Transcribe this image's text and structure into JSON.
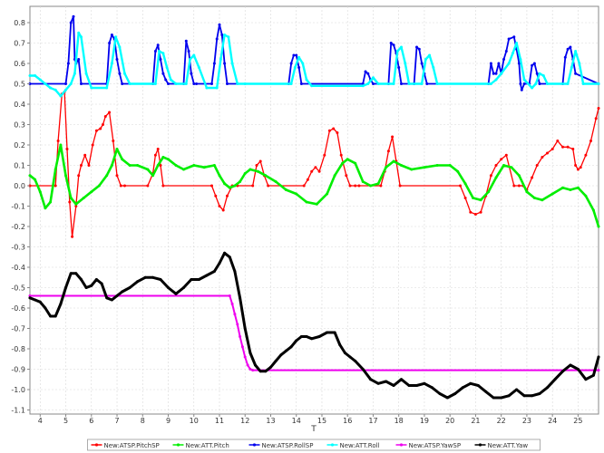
{
  "chart_data": {
    "type": "line",
    "xlabel": "T",
    "ylabel": "",
    "xlim": [
      3.6,
      25.8
    ],
    "ylim": [
      -1.12,
      0.88
    ],
    "x_ticks": [
      4,
      5,
      6,
      7,
      8,
      9,
      10,
      11,
      12,
      13,
      14,
      15,
      16,
      17,
      18,
      19,
      20,
      21,
      22,
      23,
      24,
      25
    ],
    "y_ticks": [
      0.8,
      0.7,
      0.6,
      0.5,
      0.4,
      0.3,
      0.2,
      0.1,
      0.0,
      -0.1,
      -0.2,
      -0.3,
      -0.4,
      -0.5,
      -0.6,
      -0.7,
      -0.8,
      -0.9,
      -1.0,
      -1.1
    ],
    "y_tick_labels": [
      "0.8",
      "0.7",
      "0.6",
      "0.5",
      "0.4",
      "0.3",
      "0.2",
      "0.1",
      "0.0",
      "-0.1",
      "-0.2",
      "-0.3",
      "-0.4",
      "-0.5",
      "-0.6",
      "-0.7",
      "-0.8",
      "-0.9",
      "-1.0",
      "-1.1"
    ],
    "grid": true,
    "legend_position": "bottom",
    "series": [
      {
        "name": "New:ATSP.PitchSP",
        "color": "#ff0000",
        "x": [
          3.6,
          4.6,
          4.7,
          4.85,
          4.95,
          5.05,
          5.15,
          5.25,
          5.4,
          5.5,
          5.6,
          5.75,
          5.9,
          6.05,
          6.2,
          6.35,
          6.45,
          6.55,
          6.7,
          6.85,
          7.0,
          7.15,
          7.3,
          8.2,
          8.4,
          8.5,
          8.6,
          8.7,
          8.8,
          10.7,
          10.85,
          11.0,
          11.15,
          11.3,
          11.5,
          11.7,
          12.3,
          12.45,
          12.6,
          12.75,
          12.9,
          14.3,
          14.45,
          14.6,
          14.75,
          14.9,
          15.1,
          15.3,
          15.45,
          15.6,
          15.75,
          15.95,
          16.1,
          16.3,
          16.45,
          17.3,
          17.45,
          17.6,
          17.75,
          17.9,
          18.05,
          20.4,
          20.6,
          20.8,
          21.0,
          21.2,
          21.4,
          21.6,
          21.8,
          22.0,
          22.2,
          22.5,
          22.7,
          22.85,
          23.0,
          23.2,
          23.4,
          23.6,
          23.8,
          24.0,
          24.2,
          24.4,
          24.6,
          24.8,
          24.9,
          25.0,
          25.1,
          25.3,
          25.5,
          25.7,
          25.8
        ],
        "values": [
          0.0,
          0.0,
          0.22,
          0.45,
          0.46,
          0.18,
          -0.08,
          -0.25,
          -0.1,
          0.05,
          0.1,
          0.15,
          0.1,
          0.2,
          0.27,
          0.28,
          0.3,
          0.34,
          0.36,
          0.22,
          0.05,
          0.0,
          0.0,
          0.0,
          0.06,
          0.15,
          0.18,
          0.1,
          0.0,
          0.0,
          -0.05,
          -0.1,
          -0.12,
          -0.05,
          0.0,
          0.0,
          0.0,
          0.1,
          0.12,
          0.05,
          0.0,
          0.0,
          0.03,
          0.07,
          0.09,
          0.07,
          0.15,
          0.27,
          0.28,
          0.26,
          0.15,
          0.05,
          0.0,
          0.0,
          0.0,
          0.0,
          0.07,
          0.17,
          0.24,
          0.12,
          0.0,
          0.0,
          -0.06,
          -0.13,
          -0.14,
          -0.13,
          -0.05,
          0.05,
          0.1,
          0.13,
          0.15,
          0.0,
          0.0,
          0.0,
          -0.02,
          0.04,
          0.1,
          0.14,
          0.16,
          0.18,
          0.22,
          0.19,
          0.19,
          0.18,
          0.1,
          0.08,
          0.09,
          0.15,
          0.22,
          0.33,
          0.38
        ]
      },
      {
        "name": "New:ATT.Pitch",
        "color": "#00ee00",
        "x": [
          3.6,
          3.8,
          4.0,
          4.2,
          4.4,
          4.6,
          4.8,
          5.0,
          5.2,
          5.4,
          5.7,
          6.0,
          6.3,
          6.6,
          6.8,
          7.0,
          7.2,
          7.5,
          7.8,
          8.2,
          8.4,
          8.6,
          8.8,
          9.0,
          9.3,
          9.6,
          10.0,
          10.4,
          10.8,
          11.0,
          11.2,
          11.4,
          11.6,
          11.8,
          12.0,
          12.2,
          12.5,
          12.8,
          13.2,
          13.6,
          14.0,
          14.4,
          14.8,
          15.2,
          15.5,
          15.8,
          16.0,
          16.3,
          16.6,
          16.9,
          17.2,
          17.5,
          17.8,
          18.1,
          18.5,
          19.0,
          19.5,
          20.0,
          20.3,
          20.6,
          20.9,
          21.2,
          21.5,
          21.8,
          22.1,
          22.4,
          22.7,
          23.0,
          23.3,
          23.6,
          24.0,
          24.4,
          24.7,
          25.0,
          25.3,
          25.6,
          25.8
        ],
        "values": [
          0.05,
          0.03,
          -0.03,
          -0.11,
          -0.08,
          0.08,
          0.2,
          0.05,
          -0.06,
          -0.09,
          -0.06,
          -0.03,
          0.0,
          0.05,
          0.1,
          0.18,
          0.13,
          0.1,
          0.1,
          0.08,
          0.05,
          0.1,
          0.14,
          0.13,
          0.1,
          0.08,
          0.1,
          0.09,
          0.1,
          0.05,
          0.01,
          -0.01,
          0.0,
          0.02,
          0.06,
          0.08,
          0.07,
          0.05,
          0.02,
          -0.02,
          -0.04,
          -0.08,
          -0.09,
          -0.04,
          0.05,
          0.11,
          0.13,
          0.11,
          0.02,
          0.0,
          0.01,
          0.09,
          0.12,
          0.1,
          0.08,
          0.09,
          0.1,
          0.1,
          0.07,
          0.01,
          -0.06,
          -0.07,
          -0.03,
          0.04,
          0.1,
          0.09,
          0.05,
          -0.03,
          -0.06,
          -0.07,
          -0.04,
          -0.01,
          -0.02,
          -0.01,
          -0.05,
          -0.12,
          -0.2
        ]
      },
      {
        "name": "New:ATSP.RollSP",
        "color": "#0000ee",
        "x": [
          3.6,
          5.0,
          5.1,
          5.2,
          5.3,
          5.35,
          5.4,
          5.5,
          5.6,
          6.6,
          6.7,
          6.8,
          6.9,
          7.0,
          7.1,
          7.2,
          8.4,
          8.5,
          8.6,
          8.7,
          8.8,
          8.9,
          9.0,
          9.6,
          9.7,
          9.8,
          9.9,
          10.0,
          10.1,
          10.7,
          10.8,
          10.9,
          11.0,
          11.1,
          11.2,
          11.3,
          13.7,
          13.8,
          13.9,
          14.0,
          14.1,
          14.2,
          16.6,
          16.7,
          16.8,
          16.9,
          17.0,
          17.6,
          17.7,
          17.8,
          17.9,
          18.0,
          18.1,
          18.6,
          18.7,
          18.8,
          18.9,
          19.0,
          19.1,
          21.5,
          21.6,
          21.7,
          21.8,
          21.9,
          22.0,
          22.1,
          22.2,
          22.3,
          22.5,
          22.6,
          22.7,
          22.75,
          22.8,
          22.9,
          23.1,
          23.2,
          23.3,
          23.4,
          23.5,
          24.4,
          24.5,
          24.6,
          24.7,
          24.8,
          24.9,
          25.8
        ],
        "values": [
          0.5,
          0.5,
          0.6,
          0.8,
          0.83,
          0.62,
          0.6,
          0.62,
          0.5,
          0.5,
          0.7,
          0.74,
          0.72,
          0.62,
          0.55,
          0.5,
          0.5,
          0.66,
          0.69,
          0.62,
          0.55,
          0.52,
          0.5,
          0.5,
          0.71,
          0.66,
          0.55,
          0.5,
          0.5,
          0.5,
          0.6,
          0.72,
          0.79,
          0.74,
          0.6,
          0.5,
          0.5,
          0.6,
          0.64,
          0.64,
          0.58,
          0.5,
          0.5,
          0.56,
          0.55,
          0.52,
          0.5,
          0.5,
          0.7,
          0.69,
          0.65,
          0.58,
          0.5,
          0.5,
          0.68,
          0.67,
          0.6,
          0.55,
          0.5,
          0.5,
          0.6,
          0.55,
          0.55,
          0.6,
          0.55,
          0.62,
          0.66,
          0.72,
          0.73,
          0.67,
          0.6,
          0.5,
          0.47,
          0.5,
          0.5,
          0.59,
          0.6,
          0.55,
          0.5,
          0.5,
          0.63,
          0.67,
          0.68,
          0.62,
          0.55,
          0.5
        ]
      },
      {
        "name": "New:ATT.Roll",
        "color": "#00ffff",
        "x": [
          3.6,
          3.8,
          4.0,
          4.2,
          4.4,
          4.6,
          4.8,
          5.0,
          5.2,
          5.35,
          5.5,
          5.6,
          5.8,
          6.0,
          6.6,
          6.8,
          6.95,
          7.1,
          7.3,
          7.5,
          8.5,
          8.65,
          8.8,
          8.95,
          9.1,
          9.3,
          9.7,
          9.85,
          10.0,
          10.2,
          10.5,
          10.9,
          11.05,
          11.2,
          11.35,
          11.5,
          11.7,
          12.0,
          13.8,
          13.95,
          14.1,
          14.25,
          14.4,
          14.6,
          16.6,
          16.8,
          17.0,
          17.2,
          17.8,
          17.95,
          18.1,
          18.25,
          18.4,
          18.9,
          19.05,
          19.2,
          19.35,
          19.5,
          21.6,
          21.8,
          22.0,
          22.3,
          22.45,
          22.6,
          22.75,
          22.9,
          23.2,
          23.35,
          23.5,
          23.65,
          23.8,
          24.6,
          24.75,
          24.9,
          25.05,
          25.2,
          25.8
        ],
        "values": [
          0.54,
          0.54,
          0.52,
          0.5,
          0.48,
          0.47,
          0.44,
          0.47,
          0.5,
          0.55,
          0.75,
          0.73,
          0.55,
          0.48,
          0.48,
          0.6,
          0.73,
          0.68,
          0.55,
          0.5,
          0.5,
          0.66,
          0.65,
          0.58,
          0.52,
          0.5,
          0.5,
          0.62,
          0.64,
          0.58,
          0.48,
          0.48,
          0.62,
          0.74,
          0.73,
          0.6,
          0.5,
          0.5,
          0.5,
          0.58,
          0.63,
          0.6,
          0.52,
          0.49,
          0.49,
          0.5,
          0.53,
          0.5,
          0.5,
          0.66,
          0.68,
          0.6,
          0.5,
          0.5,
          0.62,
          0.64,
          0.58,
          0.5,
          0.5,
          0.52,
          0.55,
          0.6,
          0.65,
          0.7,
          0.62,
          0.52,
          0.48,
          0.5,
          0.55,
          0.54,
          0.5,
          0.5,
          0.58,
          0.66,
          0.6,
          0.5,
          0.5
        ]
      },
      {
        "name": "New:ATSP.YawSP",
        "color": "#ee00ee",
        "x": [
          3.6,
          11.4,
          11.5,
          11.6,
          11.7,
          11.8,
          11.9,
          12.0,
          12.1,
          12.2,
          12.3,
          25.8
        ],
        "values": [
          -0.54,
          -0.54,
          -0.58,
          -0.63,
          -0.68,
          -0.74,
          -0.79,
          -0.84,
          -0.88,
          -0.9,
          -0.905,
          -0.905
        ]
      },
      {
        "name": "New:ATT.Yaw",
        "color": "#000000",
        "x": [
          3.6,
          3.8,
          4.0,
          4.2,
          4.4,
          4.6,
          4.8,
          5.0,
          5.2,
          5.4,
          5.6,
          5.8,
          6.0,
          6.2,
          6.4,
          6.6,
          6.8,
          7.0,
          7.2,
          7.5,
          7.8,
          8.1,
          8.4,
          8.7,
          9.0,
          9.3,
          9.6,
          9.9,
          10.2,
          10.5,
          10.8,
          11.0,
          11.2,
          11.4,
          11.6,
          11.8,
          12.0,
          12.2,
          12.4,
          12.6,
          12.8,
          13.0,
          13.2,
          13.4,
          13.6,
          13.8,
          14.0,
          14.2,
          14.4,
          14.6,
          14.9,
          15.2,
          15.5,
          15.7,
          15.9,
          16.1,
          16.3,
          16.6,
          16.9,
          17.2,
          17.5,
          17.8,
          18.1,
          18.4,
          18.7,
          19.0,
          19.3,
          19.6,
          19.9,
          20.2,
          20.5,
          20.8,
          21.1,
          21.4,
          21.7,
          22.0,
          22.3,
          22.6,
          22.9,
          23.2,
          23.5,
          23.8,
          24.1,
          24.4,
          24.7,
          25.0,
          25.3,
          25.6,
          25.8
        ],
        "values": [
          -0.55,
          -0.56,
          -0.57,
          -0.6,
          -0.64,
          -0.64,
          -0.58,
          -0.5,
          -0.43,
          -0.43,
          -0.46,
          -0.5,
          -0.49,
          -0.46,
          -0.48,
          -0.55,
          -0.56,
          -0.54,
          -0.52,
          -0.5,
          -0.47,
          -0.45,
          -0.45,
          -0.46,
          -0.5,
          -0.53,
          -0.5,
          -0.46,
          -0.46,
          -0.44,
          -0.42,
          -0.38,
          -0.33,
          -0.35,
          -0.42,
          -0.55,
          -0.7,
          -0.82,
          -0.88,
          -0.91,
          -0.91,
          -0.89,
          -0.86,
          -0.83,
          -0.81,
          -0.79,
          -0.76,
          -0.74,
          -0.74,
          -0.75,
          -0.74,
          -0.72,
          -0.72,
          -0.78,
          -0.82,
          -0.84,
          -0.86,
          -0.9,
          -0.95,
          -0.97,
          -0.96,
          -0.98,
          -0.95,
          -0.98,
          -0.98,
          -0.97,
          -0.99,
          -1.02,
          -1.04,
          -1.02,
          -0.99,
          -0.97,
          -0.98,
          -1.01,
          -1.04,
          -1.04,
          -1.03,
          -1.0,
          -1.03,
          -1.03,
          -1.02,
          -0.99,
          -0.95,
          -0.91,
          -0.88,
          -0.9,
          -0.95,
          -0.93,
          -0.84
        ]
      }
    ]
  }
}
